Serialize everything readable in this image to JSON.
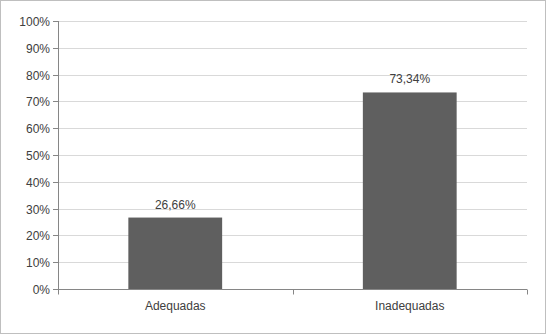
{
  "chart_data": {
    "type": "bar",
    "categories": [
      "Adequadas",
      "Inadequadas"
    ],
    "values": [
      26.66,
      73.34
    ],
    "value_labels": [
      "26,66%",
      "73,34%"
    ],
    "color": "#5f5f5f",
    "ylim": [
      0,
      100
    ],
    "yticks": [
      {
        "value": 0,
        "label": "0%"
      },
      {
        "value": 10,
        "label": "10%"
      },
      {
        "value": 20,
        "label": "20%"
      },
      {
        "value": 30,
        "label": "30%"
      },
      {
        "value": 40,
        "label": "40%"
      },
      {
        "value": 50,
        "label": "50%"
      },
      {
        "value": 60,
        "label": "60%"
      },
      {
        "value": 70,
        "label": "70%"
      },
      {
        "value": 80,
        "label": "80%"
      },
      {
        "value": 90,
        "label": "90%"
      },
      {
        "value": 100,
        "label": "100%"
      }
    ],
    "grid": true,
    "data_labels": true
  }
}
